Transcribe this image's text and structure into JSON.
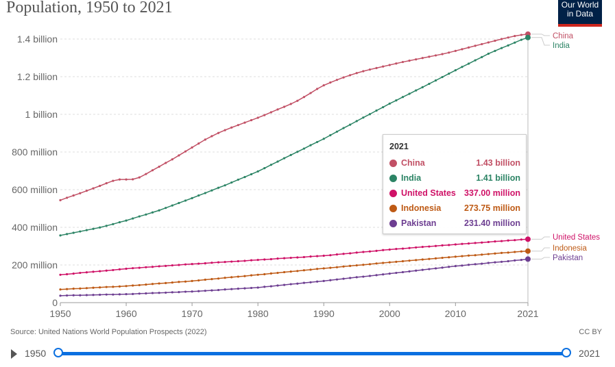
{
  "title": "Population, 1950 to 2021",
  "logo": {
    "line1": "Our World",
    "line2": "in Data"
  },
  "source": "Source: United Nations World Population Prospects (2022)",
  "license": "CC BY",
  "timeline": {
    "start": "1950",
    "end": "2021"
  },
  "tooltip": {
    "year": "2021",
    "rows": [
      {
        "name": "China",
        "value": "1.43 billion",
        "color": "#c15065"
      },
      {
        "name": "India",
        "value": "1.41 billion",
        "color": "#2c8465"
      },
      {
        "name": "United States",
        "value": "337.00 million",
        "color": "#cf1267"
      },
      {
        "name": "Indonesia",
        "value": "273.75 million",
        "color": "#be5a15"
      },
      {
        "name": "Pakistan",
        "value": "231.40 million",
        "color": "#6d3e91"
      }
    ]
  },
  "chart_data": {
    "type": "line",
    "title": "Population, 1950 to 2021",
    "x_start": 1950,
    "x_end": 2021,
    "xticks": [
      "1950",
      "1960",
      "1970",
      "1980",
      "1990",
      "2000",
      "2010",
      "2021"
    ],
    "yticks": [
      {
        "v": 0,
        "label": "0"
      },
      {
        "v": 200,
        "label": "200 million"
      },
      {
        "v": 400,
        "label": "400 million"
      },
      {
        "v": 600,
        "label": "600 million"
      },
      {
        "v": 800,
        "label": "800 million"
      },
      {
        "v": 1000,
        "label": "1 billion"
      },
      {
        "v": 1200,
        "label": "1.2 billion"
      },
      {
        "v": 1400,
        "label": "1.4 billion"
      }
    ],
    "yunit": "million",
    "ylim": [
      0,
      1400
    ],
    "grid": "horizontal dashed",
    "series": [
      {
        "name": "China",
        "color": "#c15065",
        "values": [
          544,
          557,
          569,
          581,
          594,
          607,
          620,
          634,
          647,
          654,
          654,
          655,
          665,
          683,
          703,
          722,
          742,
          761,
          782,
          803,
          824,
          845,
          866,
          884,
          901,
          916,
          930,
          943,
          956,
          969,
          982,
          996,
          1011,
          1026,
          1040,
          1055,
          1072,
          1092,
          1113,
          1135,
          1154,
          1169,
          1183,
          1196,
          1208,
          1219,
          1229,
          1238,
          1246,
          1254,
          1262,
          1270,
          1278,
          1285,
          1292,
          1299,
          1306,
          1313,
          1320,
          1328,
          1337,
          1346,
          1355,
          1364,
          1373,
          1382,
          1391,
          1400,
          1408,
          1416,
          1422,
          1426
        ]
      },
      {
        "name": "India",
        "color": "#2c8465",
        "values": [
          357,
          364,
          371,
          378,
          385,
          392,
          399,
          408,
          417,
          427,
          436,
          447,
          458,
          468,
          479,
          490,
          503,
          516,
          529,
          542,
          555,
          569,
          582,
          596,
          610,
          623,
          638,
          653,
          667,
          682,
          697,
          714,
          732,
          749,
          767,
          784,
          801,
          818,
          836,
          853,
          870,
          889,
          908,
          927,
          945,
          964,
          983,
          1001,
          1020,
          1038,
          1057,
          1074,
          1092,
          1109,
          1127,
          1144,
          1162,
          1180,
          1198,
          1216,
          1234,
          1252,
          1269,
          1287,
          1304,
          1322,
          1337,
          1352,
          1366,
          1381,
          1396,
          1408
        ]
      },
      {
        "name": "United States",
        "color": "#cf1267",
        "values": [
          148,
          151,
          154,
          158,
          161,
          164,
          167,
          170,
          173,
          177,
          180,
          183,
          185,
          188,
          190,
          193,
          195,
          198,
          200,
          203,
          205,
          207,
          209,
          212,
          214,
          216,
          218,
          220,
          222,
          225,
          227,
          229,
          231,
          234,
          236,
          238,
          240,
          242,
          245,
          247,
          249,
          252,
          256,
          259,
          262,
          266,
          269,
          272,
          275,
          279,
          282,
          285,
          287,
          290,
          293,
          296,
          298,
          301,
          304,
          306,
          309,
          312,
          314,
          317,
          319,
          322,
          325,
          327,
          330,
          332,
          335,
          337
        ]
      },
      {
        "name": "Indonesia",
        "color": "#be5a15",
        "values": [
          70,
          72,
          74,
          75,
          77,
          79,
          81,
          83,
          84,
          86,
          88,
          91,
          93,
          96,
          99,
          102,
          104,
          107,
          110,
          112,
          115,
          118,
          122,
          125,
          128,
          132,
          135,
          138,
          141,
          145,
          148,
          151,
          155,
          158,
          162,
          165,
          168,
          172,
          175,
          179,
          182,
          185,
          188,
          192,
          195,
          198,
          201,
          204,
          208,
          211,
          214,
          217,
          220,
          223,
          226,
          229,
          232,
          235,
          238,
          241,
          244,
          247,
          250,
          252,
          255,
          258,
          261,
          264,
          266,
          269,
          272,
          273.75
        ]
      },
      {
        "name": "Pakistan",
        "color": "#6d3e91",
        "values": [
          37,
          38,
          39,
          39,
          40,
          41,
          42,
          43,
          43,
          44,
          45,
          46,
          48,
          49,
          51,
          52,
          53,
          55,
          56,
          58,
          59,
          61,
          63,
          65,
          67,
          70,
          72,
          74,
          76,
          78,
          80,
          84,
          87,
          91,
          94,
          98,
          101,
          105,
          108,
          112,
          115,
          119,
          123,
          127,
          131,
          135,
          138,
          142,
          146,
          150,
          154,
          158,
          162,
          166,
          170,
          174,
          178,
          182,
          186,
          190,
          194,
          197,
          201,
          204,
          207,
          211,
          214,
          217,
          220,
          224,
          227,
          231.4
        ]
      }
    ]
  }
}
